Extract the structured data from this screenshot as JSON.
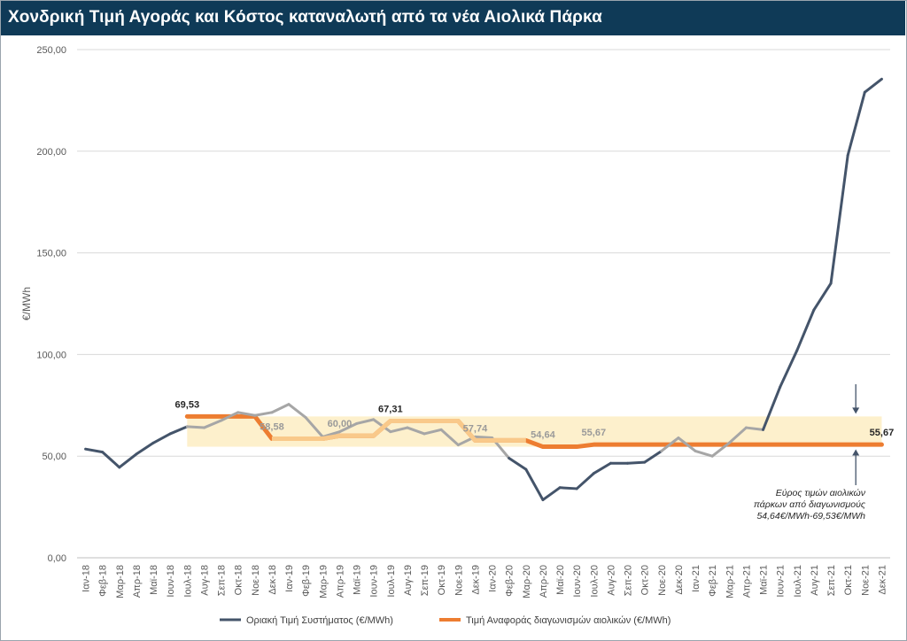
{
  "page": {
    "title": "Χονδρική Τιμή Αγοράς  και Κόστος καταναλωτή από τα νέα Αιολικά Πάρκα"
  },
  "chart_data": {
    "type": "line",
    "title": "Χονδρική Τιμή Αγοράς  και Κόστος καταναλωτή από τα νέα Αιολικά Πάρκα",
    "ylabel": "€/MWh",
    "xlabel": "",
    "ylim": [
      0,
      250
    ],
    "yticks": [
      "0,00",
      "50,00",
      "100,00",
      "150,00",
      "200,00",
      "250,00"
    ],
    "grid": true,
    "legend_position": "bottom",
    "categories": [
      "Ιαν-18",
      "Φεβ-18",
      "Μαρ-18",
      "Απρ-18",
      "Μαϊ-18",
      "Ιουν-18",
      "Ιουλ-18",
      "Αυγ-18",
      "Σεπ-18",
      "Οκτ-18",
      "Νοε-18",
      "Δεκ-18",
      "Ιαν-19",
      "Φεβ-19",
      "Μαρ-19",
      "Απρ-19",
      "Μαϊ-19",
      "Ιουν-19",
      "Ιουλ-19",
      "Αυγ-19",
      "Σεπ-19",
      "Οκτ-19",
      "Νοε-19",
      "Δεκ-19",
      "Ιαν-20",
      "Φεβ-20",
      "Μαρ-20",
      "Απρ-20",
      "Μαϊ-20",
      "Ιουν-20",
      "Ιουλ-20",
      "Αυγ-20",
      "Σεπ-20",
      "Οκτ-20",
      "Νοε-20",
      "Δεκ-20",
      "Ιαν-21",
      "Φεβ-21",
      "Μαρ-21",
      "Απρ-21",
      "Μαϊ-21",
      "Ιουν-21",
      "Ιουλ-21",
      "Αυγ-21",
      "Σεπ-21",
      "Οκτ-21",
      "Νοε-21",
      "Δεκ-21"
    ],
    "series": [
      {
        "name": "Οριακή Τιμή Συστήματος (€/MWh)",
        "color": "#44546a",
        "values": [
          53.5,
          52,
          44.5,
          51,
          56.5,
          61,
          64.5,
          64,
          67.5,
          71.5,
          70,
          71.5,
          75.5,
          69,
          59.5,
          62,
          66,
          68,
          62,
          64,
          61,
          63,
          55.5,
          59.5,
          59,
          49,
          43.5,
          28.5,
          34.5,
          34,
          41.5,
          46.5,
          46.5,
          47,
          52.5,
          59,
          52.5,
          50,
          56.5,
          64,
          63,
          84,
          102,
          122,
          135,
          198,
          229,
          235.5
        ]
      },
      {
        "name": "Τιμή Αναφοράς διαγωνισμών αιολικών (€/MWh)",
        "color": "#ed7d31",
        "values": [
          null,
          null,
          null,
          null,
          null,
          null,
          69.53,
          69.53,
          69.53,
          69.53,
          69.53,
          58.58,
          58.58,
          58.58,
          58.58,
          60,
          60,
          60,
          67.31,
          67.31,
          67.31,
          67.31,
          67.31,
          57.74,
          57.74,
          57.74,
          57.74,
          54.64,
          54.64,
          54.64,
          55.67,
          55.67,
          55.67,
          55.67,
          55.67,
          55.67,
          55.67,
          55.67,
          55.67,
          55.67,
          55.67,
          55.67,
          55.67,
          55.67,
          55.67,
          55.67,
          55.67,
          55.67
        ]
      }
    ],
    "data_labels": [
      {
        "index": 6,
        "value": 69.53,
        "text": "69,53"
      },
      {
        "index": 11,
        "value": 58.58,
        "text": "58,58"
      },
      {
        "index": 15,
        "value": 60,
        "text": "60,00"
      },
      {
        "index": 18,
        "value": 67.31,
        "text": "67,31"
      },
      {
        "index": 23,
        "value": 57.74,
        "text": "57,74"
      },
      {
        "index": 27,
        "value": 54.64,
        "text": "54,64"
      },
      {
        "index": 30,
        "value": 55.67,
        "text": "55,67"
      },
      {
        "index": 47,
        "value": 55.67,
        "text": "55,67"
      }
    ],
    "band": {
      "min": 54.64,
      "max": 69.53,
      "color": "#fdf0cc"
    },
    "annotation": [
      "Εύρος τιμών αιολικών",
      "πάρκων από διαγωνισμούς",
      "54,64€/MWh-69,53€/MWh"
    ]
  }
}
